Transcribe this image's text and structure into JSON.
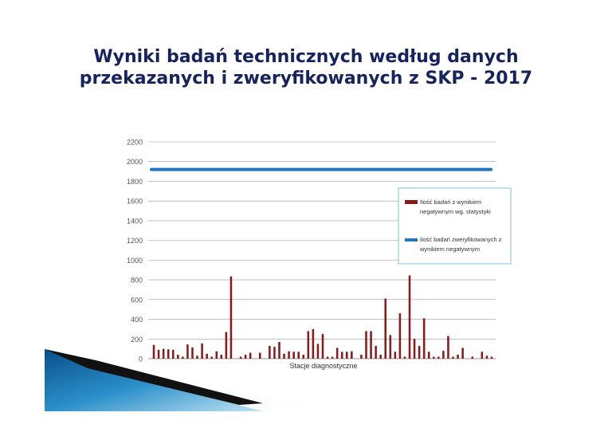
{
  "slide": {
    "title_line1": "Wyniki badań technicznych według danych",
    "title_line2": "przekazanych i zweryfikowanych z SKP - 2017"
  },
  "chart_data": {
    "type": "bar",
    "xlabel": "Stacje diagnostyczne",
    "ylabel": "",
    "ylim": [
      0,
      2200
    ],
    "yticks": [
      0,
      200,
      400,
      600,
      800,
      1000,
      1200,
      1400,
      1600,
      1800,
      2000,
      2200
    ],
    "grid": true,
    "legend_position": "right",
    "colors": {
      "bars": "#8b1a1a",
      "line": "#1f78c1",
      "grid": "#9a9a9a",
      "axis_text": "#555555"
    },
    "series": [
      {
        "name": "Ilość badań z wynikiem negatywnym wg. statystyki",
        "legend_line1": "Ilość badań z wynikiem",
        "legend_line2": "negatywnym wg. statystyki",
        "type": "bar",
        "values": [
          140,
          90,
          100,
          95,
          90,
          40,
          20,
          145,
          115,
          30,
          155,
          50,
          20,
          75,
          40,
          270,
          835,
          0,
          20,
          40,
          60,
          0,
          60,
          0,
          130,
          120,
          170,
          50,
          75,
          70,
          70,
          40,
          280,
          300,
          150,
          250,
          20,
          20,
          110,
          70,
          70,
          75,
          0,
          40,
          280,
          280,
          130,
          40,
          610,
          240,
          70,
          460,
          20,
          845,
          200,
          130,
          410,
          70,
          20,
          20,
          80,
          230,
          20,
          40,
          110,
          0,
          20,
          0,
          70,
          30,
          20
        ]
      },
      {
        "name": "ilość badań zweryfikowanych z wynikiem negatywnym",
        "legend_line1": "ilość badań zweryfikowanych z",
        "legend_line2": "wynikiem negatywnym",
        "type": "line",
        "values": [
          1920
        ]
      }
    ]
  }
}
